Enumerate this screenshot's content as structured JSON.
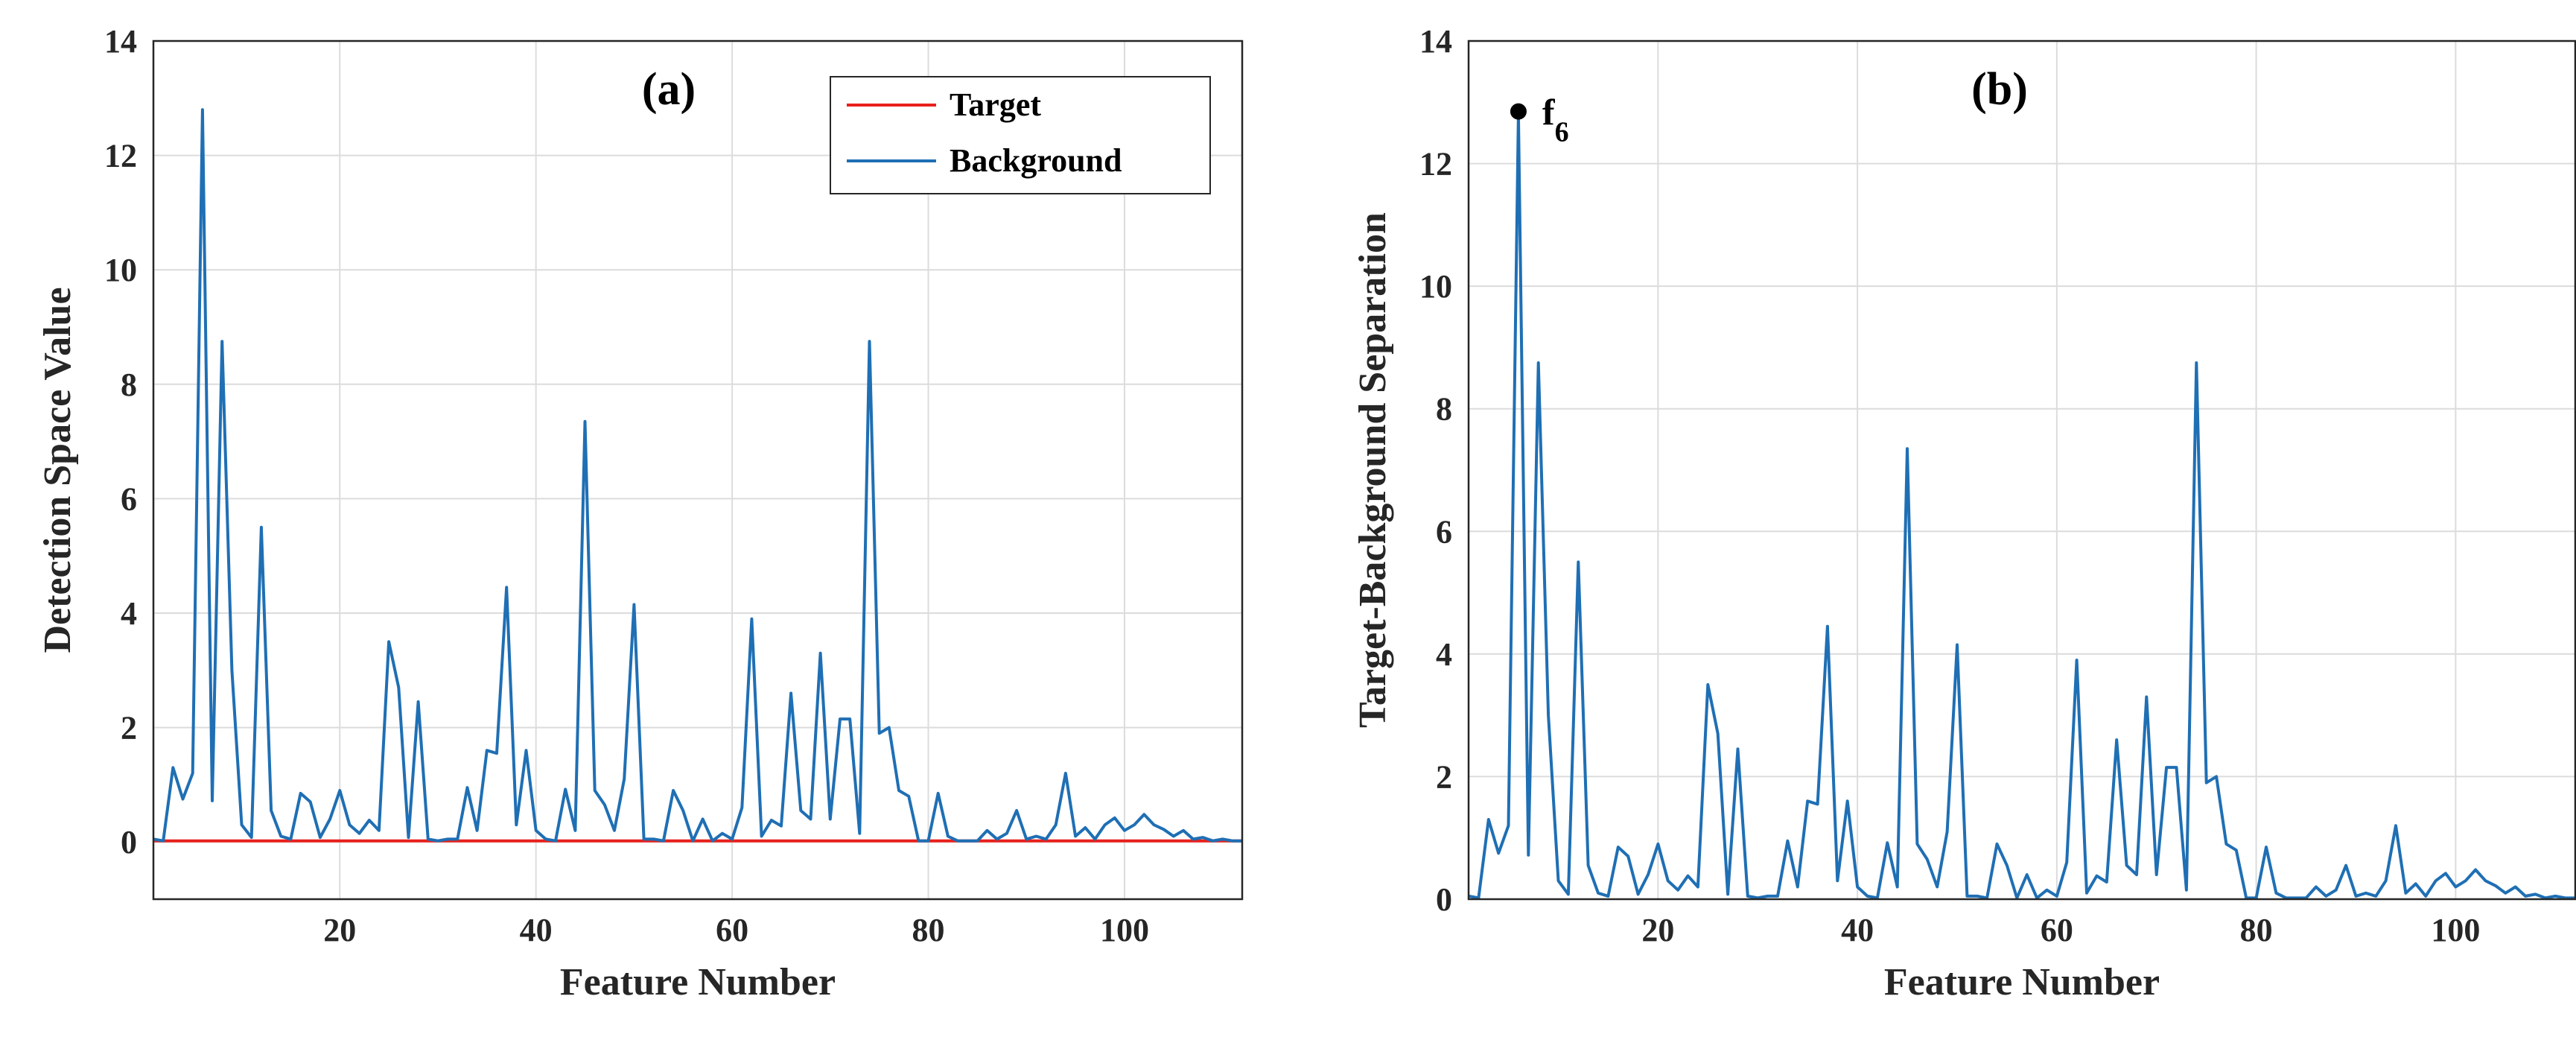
{
  "chart_data": [
    {
      "type": "line",
      "panel_label": "(a)",
      "xlabel": "Feature Number",
      "ylabel": "Detection Space Value",
      "xlim": [
        1,
        112
      ],
      "ylim": [
        -1,
        14
      ],
      "xticks": [
        20,
        40,
        60,
        80,
        100
      ],
      "yticks": [
        0,
        2,
        4,
        6,
        8,
        10,
        12,
        14
      ],
      "grid": true,
      "legend_position": "top-right",
      "series": [
        {
          "name": "Target",
          "color": "#e8201c",
          "x_start": 1,
          "values": [
            0.02,
            0.02,
            0.02,
            0.02,
            0.02,
            0.02,
            0.02,
            0.02,
            0.02,
            0.02,
            0.02,
            0.02,
            0.02,
            0.02,
            0.02,
            0.02,
            0.02,
            0.02,
            0.02,
            0.02,
            0.02,
            0.02,
            0.02,
            0.02,
            0.02,
            0.02,
            0.02,
            0.02,
            0.02,
            0.02,
            0.02,
            0.02,
            0.02,
            0.02,
            0.02,
            0.02,
            0.02,
            0.02,
            0.02,
            0.02,
            0.02,
            0.02,
            0.02,
            0.02,
            0.02,
            0.02,
            0.02,
            0.02,
            0.02,
            0.02,
            0.02,
            0.02,
            0.02,
            0.02,
            0.02,
            0.02,
            0.02,
            0.02,
            0.02,
            0.02,
            0.02,
            0.02,
            0.02,
            0.02,
            0.02,
            0.02,
            0.02,
            0.02,
            0.02,
            0.02,
            0.02,
            0.02,
            0.02,
            0.02,
            0.02,
            0.02,
            0.02,
            0.02,
            0.02,
            0.02,
            0.02,
            0.02,
            0.02,
            0.02,
            0.02,
            0.02,
            0.02,
            0.02,
            0.02,
            0.02,
            0.02,
            0.02,
            0.02,
            0.02,
            0.02,
            0.02,
            0.02,
            0.02,
            0.02,
            0.02,
            0.02,
            0.02,
            0.02,
            0.02,
            0.02,
            0.02,
            0.02,
            0.02,
            0.02,
            0.02,
            0.02,
            0.02
          ]
        },
        {
          "name": "Background",
          "color": "#1f6fb4",
          "x_start": 1,
          "values": [
            0.05,
            0.02,
            1.3,
            0.75,
            1.2,
            12.8,
            0.72,
            8.75,
            3.0,
            0.3,
            0.08,
            5.5,
            0.55,
            0.1,
            0.05,
            0.85,
            0.7,
            0.08,
            0.4,
            0.9,
            0.3,
            0.15,
            0.38,
            0.2,
            3.5,
            2.7,
            0.08,
            2.45,
            0.05,
            0.02,
            0.05,
            0.05,
            0.95,
            0.2,
            1.6,
            1.55,
            4.45,
            0.3,
            1.6,
            0.2,
            0.05,
            0.02,
            0.92,
            0.2,
            7.35,
            0.9,
            0.65,
            0.2,
            1.1,
            4.15,
            0.05,
            0.05,
            0.02,
            0.9,
            0.55,
            0.02,
            0.4,
            0.02,
            0.15,
            0.05,
            0.6,
            3.9,
            0.1,
            0.38,
            0.28,
            2.6,
            0.55,
            0.4,
            3.3,
            0.4,
            2.15,
            2.15,
            0.15,
            8.75,
            1.9,
            2.0,
            0.9,
            0.8,
            0.02,
            0.02,
            0.85,
            0.1,
            0.02,
            0.02,
            0.02,
            0.2,
            0.05,
            0.15,
            0.55,
            0.05,
            0.1,
            0.05,
            0.3,
            1.2,
            0.1,
            0.25,
            0.05,
            0.3,
            0.42,
            0.2,
            0.3,
            0.48,
            0.3,
            0.22,
            0.1,
            0.2,
            0.05,
            0.08,
            0.02,
            0.05,
            0.02,
            0.02
          ]
        }
      ]
    },
    {
      "type": "line",
      "panel_label": "(b)",
      "xlabel": "Feature Number",
      "ylabel": "Target-Background Separation",
      "xlim": [
        1,
        112
      ],
      "ylim": [
        0,
        14
      ],
      "xticks": [
        20,
        40,
        60,
        80,
        100
      ],
      "yticks": [
        0,
        2,
        4,
        6,
        8,
        10,
        12,
        14
      ],
      "grid": true,
      "annotation": {
        "label": "f",
        "subscript": "6",
        "x": 6,
        "y": 12.85
      },
      "series": [
        {
          "name": "Target-Background Separation",
          "color": "#1f6fb4",
          "x_start": 1,
          "values": [
            0.05,
            0.02,
            1.3,
            0.75,
            1.2,
            12.8,
            0.72,
            8.75,
            3.0,
            0.3,
            0.08,
            5.5,
            0.55,
            0.1,
            0.05,
            0.85,
            0.7,
            0.08,
            0.4,
            0.9,
            0.3,
            0.15,
            0.38,
            0.2,
            3.5,
            2.7,
            0.08,
            2.45,
            0.05,
            0.02,
            0.05,
            0.05,
            0.95,
            0.2,
            1.6,
            1.55,
            4.45,
            0.3,
            1.6,
            0.2,
            0.05,
            0.02,
            0.92,
            0.2,
            7.35,
            0.9,
            0.65,
            0.2,
            1.1,
            4.15,
            0.05,
            0.05,
            0.02,
            0.9,
            0.55,
            0.02,
            0.4,
            0.02,
            0.15,
            0.05,
            0.6,
            3.9,
            0.1,
            0.38,
            0.28,
            2.6,
            0.55,
            0.4,
            3.3,
            0.4,
            2.15,
            2.15,
            0.15,
            8.75,
            1.9,
            2.0,
            0.9,
            0.8,
            0.02,
            0.02,
            0.85,
            0.1,
            0.02,
            0.02,
            0.02,
            0.2,
            0.05,
            0.15,
            0.55,
            0.05,
            0.1,
            0.05,
            0.3,
            1.2,
            0.1,
            0.25,
            0.05,
            0.3,
            0.42,
            0.2,
            0.3,
            0.48,
            0.3,
            0.22,
            0.1,
            0.2,
            0.05,
            0.08,
            0.02,
            0.05,
            0.02,
            0.02
          ]
        }
      ]
    }
  ]
}
